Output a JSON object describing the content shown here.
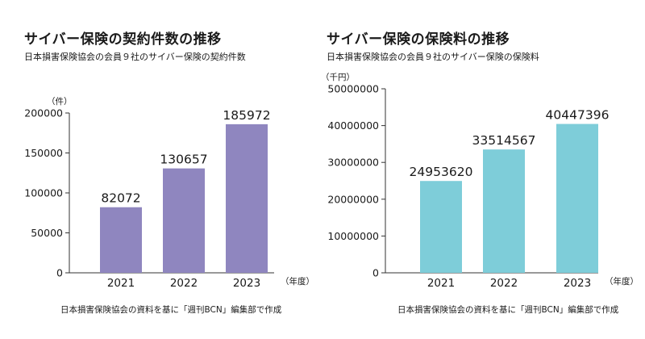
{
  "chart_data": [
    {
      "type": "bar",
      "title": "サイバー保険の契約件数の推移",
      "subtitle": "日本損害保険協会の会員９社のサイバー保険の契約件数",
      "unit_label": "（件）",
      "xlabel_unit": "（年度）",
      "categories": [
        "2021",
        "2022",
        "2023"
      ],
      "values": [
        82072,
        130657,
        185972
      ],
      "value_labels": [
        "82072",
        "130657",
        "185972"
      ],
      "yticks": [
        0,
        50000,
        100000,
        150000,
        200000
      ],
      "ytick_labels": [
        "0",
        "50000",
        "100000",
        "150000",
        "200000"
      ],
      "ylim": [
        0,
        200000
      ],
      "color": "#8f86bf",
      "source": "日本損害保険協会の資料を基に「週刊BCN」編集部で作成"
    },
    {
      "type": "bar",
      "title": "サイバー保険の保険料の推移",
      "subtitle": "日本損害保険協会の会員９社のサイバー保険の保険料",
      "unit_label": "（千円）",
      "xlabel_unit": "（年度）",
      "categories": [
        "2021",
        "2022",
        "2023"
      ],
      "values": [
        24953620,
        33514567,
        40447396
      ],
      "value_labels": [
        "24953620",
        "33514567",
        "40447396"
      ],
      "yticks": [
        0,
        10000000,
        20000000,
        30000000,
        40000000,
        50000000
      ],
      "ytick_labels": [
        "0",
        "10000000",
        "20000000",
        "30000000",
        "40000000",
        "50000000"
      ],
      "ylim": [
        0,
        50000000
      ],
      "color": "#7ecdd9",
      "source": "日本損害保険協会の資料を基に「週刊BCN」編集部で作成"
    }
  ]
}
